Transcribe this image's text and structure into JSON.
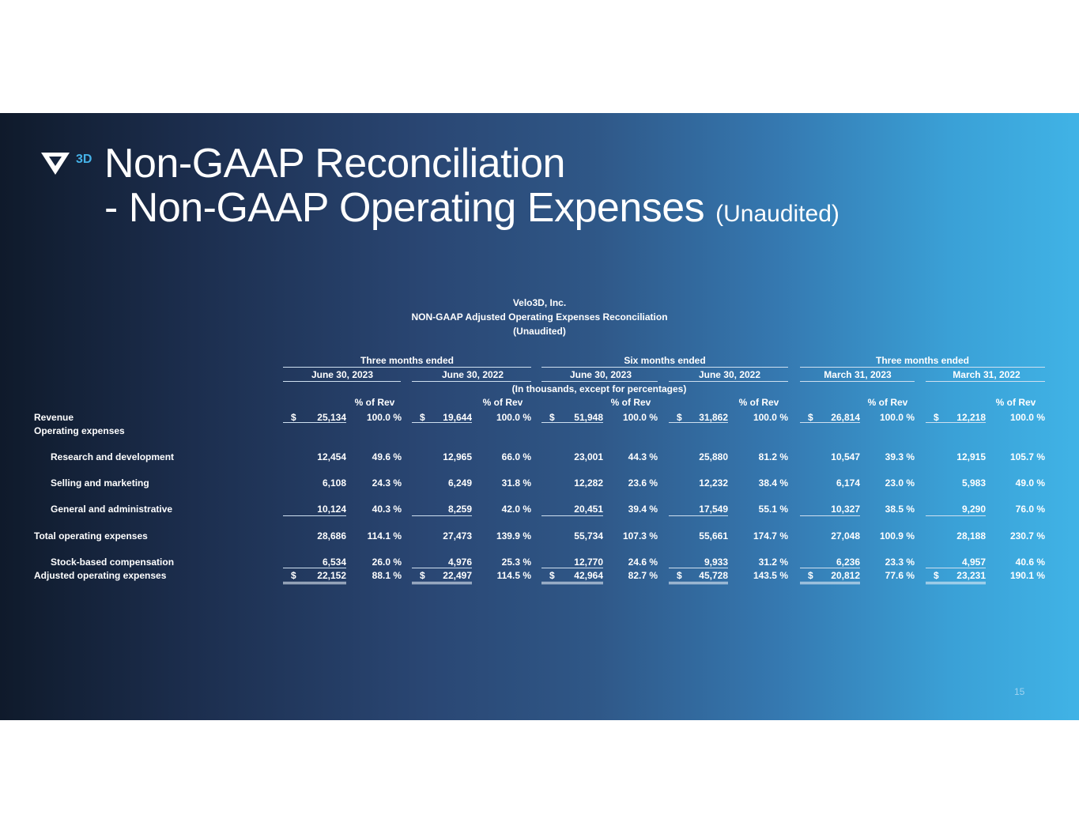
{
  "title": {
    "line1": "Non-GAAP Reconciliation",
    "line2": "- Non-GAAP Operating Expenses",
    "suffix": "(Unaudited)"
  },
  "logo": {
    "mark": "V",
    "text": "3D"
  },
  "table": {
    "company": "Velo3D, Inc.",
    "heading": "NON-GAAP Adjusted Operating Expenses Reconciliation",
    "subheading": "(Unaudited)",
    "groups": [
      "Three months ended",
      "Six months ended",
      "Three months ended"
    ],
    "periods": [
      "June 30, 2023",
      "June 30, 2022",
      "June 30, 2023",
      "June 30, 2022",
      "March 31, 2023",
      "March 31, 2022"
    ],
    "units_note": "(In thousands, except for percentages)",
    "pct_header": "% of Rev",
    "currency": "$",
    "rows": [
      {
        "label": "Revenue",
        "values": [
          "25,134",
          "19,644",
          "51,948",
          "31,862",
          "26,814",
          "12,218"
        ],
        "pcts": [
          "100.0 %",
          "100.0 %",
          "100.0 %",
          "100.0 %",
          "100.0 %",
          "100.0 %"
        ]
      },
      {
        "label": "Operating expenses"
      },
      {
        "label": "Research and development",
        "values": [
          "12,454",
          "12,965",
          "23,001",
          "25,880",
          "10,547",
          "12,915"
        ],
        "pcts": [
          "49.6 %",
          "66.0 %",
          "44.3 %",
          "81.2 %",
          "39.3 %",
          "105.7 %"
        ]
      },
      {
        "label": "Selling and marketing",
        "values": [
          "6,108",
          "6,249",
          "12,282",
          "12,232",
          "6,174",
          "5,983"
        ],
        "pcts": [
          "24.3 %",
          "31.8 %",
          "23.6 %",
          "38.4 %",
          "23.0 %",
          "49.0 %"
        ]
      },
      {
        "label": "General and administrative",
        "values": [
          "10,124",
          "8,259",
          "20,451",
          "17,549",
          "10,327",
          "9,290"
        ],
        "pcts": [
          "40.3 %",
          "42.0 %",
          "39.4 %",
          "55.1 %",
          "38.5 %",
          "76.0 %"
        ]
      },
      {
        "label": "Total operating expenses",
        "values": [
          "28,686",
          "27,473",
          "55,734",
          "55,661",
          "27,048",
          "28,188"
        ],
        "pcts": [
          "114.1 %",
          "139.9 %",
          "107.3 %",
          "174.7 %",
          "100.9 %",
          "230.7 %"
        ]
      },
      {
        "label": "Stock-based compensation",
        "values": [
          "6,534",
          "4,976",
          "12,770",
          "9,933",
          "6,236",
          "4,957"
        ],
        "pcts": [
          "26.0 %",
          "25.3 %",
          "24.6 %",
          "31.2 %",
          "23.3 %",
          "40.6 %"
        ]
      },
      {
        "label": "Adjusted operating expenses",
        "values": [
          "22,152",
          "22,497",
          "42,964",
          "45,728",
          "20,812",
          "23,231"
        ],
        "pcts": [
          "88.1 %",
          "114.5 %",
          "82.7 %",
          "143.5 %",
          "77.6 %",
          "190.1 %"
        ]
      }
    ]
  },
  "page_number": "15",
  "colors": {
    "accent": "#45b2e8",
    "text": "#ffffff"
  }
}
